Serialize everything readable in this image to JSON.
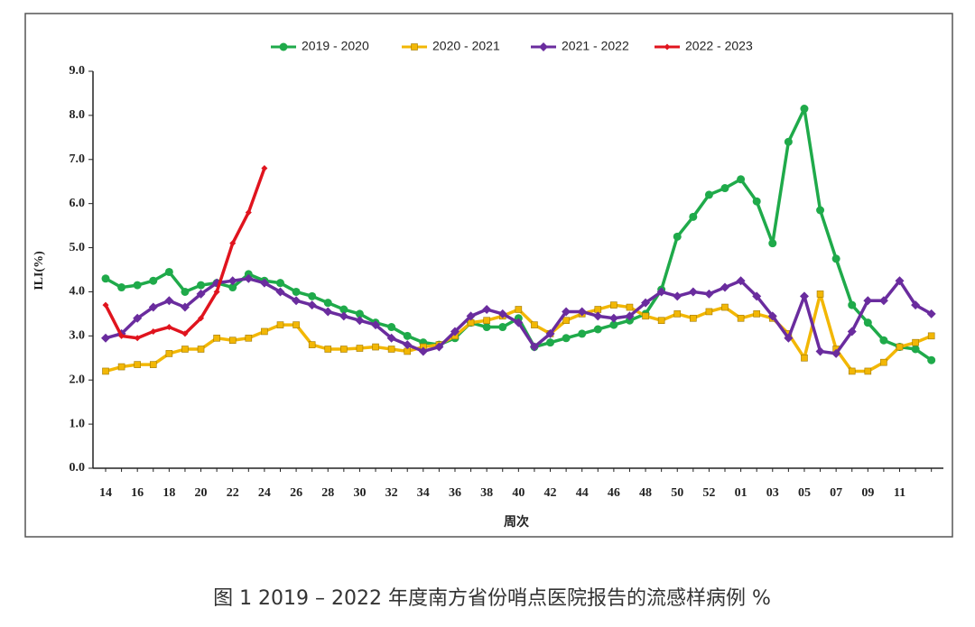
{
  "chart_data": {
    "type": "line",
    "categories": [
      "14",
      null,
      "16",
      null,
      "18",
      null,
      "20",
      null,
      "22",
      null,
      "24",
      null,
      "26",
      null,
      "28",
      null,
      "30",
      null,
      "32",
      null,
      "34",
      null,
      "36",
      null,
      "38",
      null,
      "40",
      null,
      "42",
      null,
      "44",
      null,
      "46",
      null,
      "48",
      null,
      "50",
      null,
      "52",
      null,
      "01",
      null,
      "03",
      null,
      "05",
      null,
      "07",
      null,
      "09",
      null,
      "11",
      null,
      null
    ],
    "series": [
      {
        "name": "2019 - 2020",
        "color": "#1faa4a",
        "marker": "circle",
        "values": [
          4.3,
          4.1,
          4.15,
          4.25,
          4.45,
          4.0,
          4.15,
          4.2,
          4.1,
          4.4,
          4.25,
          4.2,
          4.0,
          3.9,
          3.75,
          3.6,
          3.5,
          3.3,
          3.2,
          3.0,
          2.85,
          2.8,
          2.95,
          3.3,
          3.2,
          3.2,
          3.4,
          2.75,
          2.85,
          2.95,
          3.05,
          3.15,
          3.25,
          3.35,
          3.5,
          4.05,
          5.25,
          5.7,
          6.2,
          6.35,
          6.55,
          6.05,
          5.1,
          7.4,
          8.15,
          5.85,
          4.75,
          3.7,
          3.3,
          2.9,
          2.75,
          2.7,
          2.45
        ]
      },
      {
        "name": "2020 - 2021",
        "color": "#f2b705",
        "marker": "square",
        "values": [
          2.2,
          2.3,
          2.35,
          2.35,
          2.6,
          2.7,
          2.7,
          2.95,
          2.9,
          2.95,
          3.1,
          3.25,
          3.25,
          2.8,
          2.7,
          2.7,
          2.72,
          2.75,
          2.7,
          2.65,
          2.75,
          2.8,
          3.0,
          3.3,
          3.35,
          3.45,
          3.6,
          3.25,
          3.05,
          3.35,
          3.5,
          3.6,
          3.7,
          3.65,
          3.45,
          3.35,
          3.5,
          3.4,
          3.55,
          3.65,
          3.4,
          3.5,
          3.4,
          3.05,
          2.5,
          3.95,
          2.7,
          2.2,
          2.2,
          2.4,
          2.75,
          2.85,
          3.0
        ]
      },
      {
        "name": "2021 - 2022",
        "color": "#6a2c9e",
        "marker": "diamond",
        "values": [
          2.95,
          3.05,
          3.4,
          3.65,
          3.8,
          3.65,
          3.95,
          4.2,
          4.25,
          4.3,
          4.2,
          4.0,
          3.8,
          3.7,
          3.55,
          3.45,
          3.35,
          3.25,
          2.95,
          2.8,
          2.65,
          2.75,
          3.1,
          3.45,
          3.6,
          3.5,
          3.3,
          2.75,
          3.05,
          3.55,
          3.55,
          3.45,
          3.4,
          3.45,
          3.75,
          4.0,
          3.9,
          4.0,
          3.95,
          4.1,
          4.25,
          3.9,
          3.45,
          2.95,
          3.9,
          2.65,
          2.6,
          3.1,
          3.8,
          3.8,
          4.25,
          3.7,
          3.5
        ]
      },
      {
        "name": "2022 - 2023",
        "color": "#e0141e",
        "marker": "diamond",
        "values": [
          3.7,
          3.0,
          2.95,
          3.1,
          3.2,
          3.05,
          3.4,
          4.0,
          5.1,
          5.8,
          6.8,
          null,
          null,
          null,
          null,
          null,
          null,
          null,
          null,
          null,
          null,
          null,
          null,
          null,
          null,
          null,
          null,
          null,
          null,
          null,
          null,
          null,
          null,
          null,
          null,
          null,
          null,
          null,
          null,
          null,
          null,
          null,
          null,
          null,
          null,
          null,
          null,
          null,
          null,
          null,
          null,
          null,
          null
        ]
      }
    ],
    "ylim": [
      0,
      9
    ],
    "yticks": [
      {
        "value": 0,
        "label": "0.0"
      },
      {
        "value": 1,
        "label": "1.0"
      },
      {
        "value": 2,
        "label": "2.0"
      },
      {
        "value": 3,
        "label": "3.0"
      },
      {
        "value": 4,
        "label": "4.0"
      },
      {
        "value": 5,
        "label": "5.0"
      },
      {
        "value": 6,
        "label": "6.0"
      },
      {
        "value": 7,
        "label": "7.0"
      },
      {
        "value": 8,
        "label": "8.0"
      },
      {
        "value": 9,
        "label": "9.0"
      }
    ],
    "ylabel": "ILI(%)",
    "xlabel": "周次",
    "legend": "top",
    "grid": false
  },
  "caption": "图 1 2019 – 2022 年度南方省份哨点医院报告的流感样病例 %"
}
